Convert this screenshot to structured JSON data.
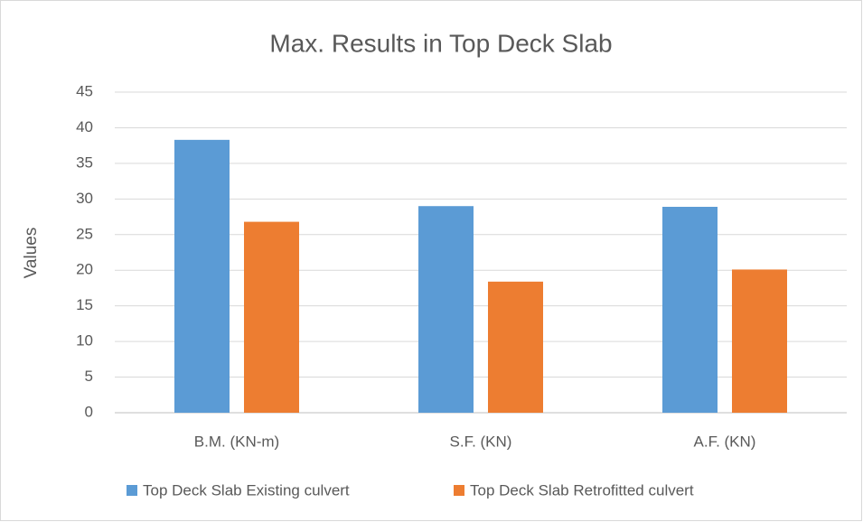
{
  "chart_data": {
    "type": "bar",
    "title": "Max. Results in Top Deck Slab",
    "y_label": "Values",
    "categories": [
      "B.M. (KN-m)",
      "S.F. (KN)",
      "A.F. (KN)"
    ],
    "series": [
      {
        "name": "Top Deck Slab Existing culvert",
        "color": "#5b9bd5",
        "values": [
          38.3,
          29.0,
          28.9
        ]
      },
      {
        "name": "Top Deck Slab Retrofitted culvert",
        "color": "#ed7d31",
        "values": [
          26.8,
          18.4,
          20.1
        ]
      }
    ],
    "ylim": [
      0,
      45
    ],
    "yticks": [
      0,
      5,
      10,
      15,
      20,
      25,
      30,
      35,
      40,
      45
    ],
    "grid": true,
    "legend": "bottom"
  }
}
